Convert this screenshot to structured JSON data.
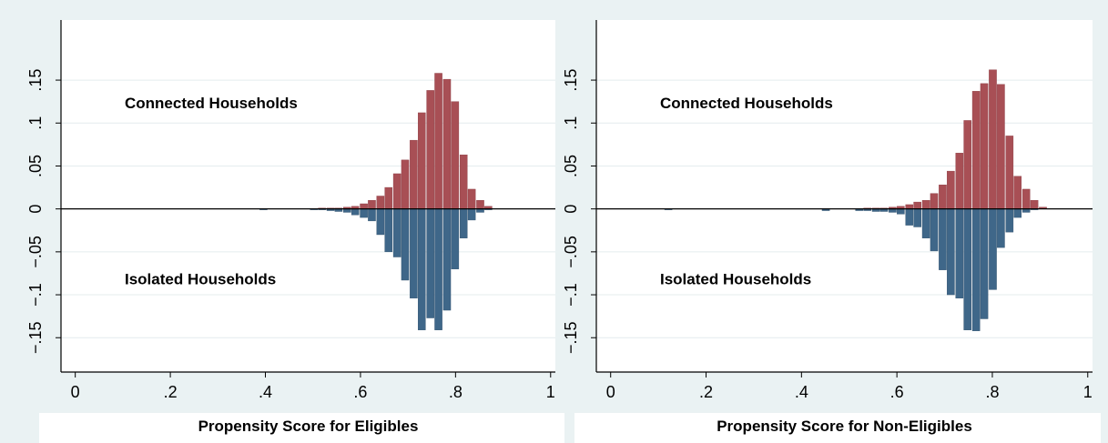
{
  "colors": {
    "background": "#eaf2f3",
    "plot_area": "#ffffff",
    "gridline": "#e4ecee",
    "connected_bar": "#a84f55",
    "connected_bar_edge": "#8a3a40",
    "isolated_bar": "#3f6789",
    "isolated_bar_edge": "#2c4d69",
    "axis": "#000000"
  },
  "chart_data": [
    {
      "type": "bar",
      "subtype": "mirrored-histogram",
      "xlabel": "Propensity Score for Eligibles",
      "ylabel": "",
      "xlim": [
        -0.03,
        1.01
      ],
      "ylim": [
        -0.19,
        0.22
      ],
      "x_ticks": [
        0,
        0.2,
        0.4,
        0.6,
        0.8,
        1
      ],
      "x_tick_labels": [
        "0",
        ".2",
        ".4",
        ".6",
        ".8",
        "1"
      ],
      "y_ticks": [
        -0.15,
        -0.1,
        -0.05,
        0,
        0.05,
        0.1,
        0.15
      ],
      "y_tick_labels": [
        "−.15",
        "−.1",
        "−.05",
        "0",
        ".05",
        ".1",
        ".15"
      ],
      "grid": true,
      "annotations": {
        "upper": "Connected Households",
        "lower": "Isolated Households"
      },
      "bin_width": 0.0175,
      "x": [
        0.396,
        0.502,
        0.519,
        0.537,
        0.554,
        0.572,
        0.589,
        0.607,
        0.624,
        0.642,
        0.659,
        0.677,
        0.694,
        0.712,
        0.729,
        0.747,
        0.764,
        0.782,
        0.799,
        0.817,
        0.834,
        0.852,
        0.869,
        0.887,
        0.904,
        0.922,
        0.939,
        0.957
      ],
      "series": [
        {
          "name": "Connected Households",
          "values": [
            0,
            0,
            0.001,
            0.001,
            0.001,
            0.002,
            0.003,
            0.006,
            0.01,
            0.015,
            0.025,
            0.041,
            0.057,
            0.08,
            0.112,
            0.138,
            0.158,
            0.151,
            0.125,
            0.063,
            0.023,
            0.01,
            0.003,
            0,
            0,
            0,
            0,
            0
          ]
        },
        {
          "name": "Isolated Households",
          "values": [
            -0.001,
            -0.001,
            -0.001,
            -0.002,
            -0.003,
            -0.004,
            -0.007,
            -0.01,
            -0.014,
            -0.03,
            -0.05,
            -0.056,
            -0.083,
            -0.104,
            -0.141,
            -0.127,
            -0.141,
            -0.118,
            -0.07,
            -0.034,
            -0.013,
            -0.004,
            -0.001,
            0,
            0,
            0,
            0,
            0
          ]
        }
      ]
    },
    {
      "type": "bar",
      "subtype": "mirrored-histogram",
      "xlabel": "Propensity Score for Non-Eligibles",
      "ylabel": "",
      "xlim": [
        -0.03,
        1.01
      ],
      "ylim": [
        -0.19,
        0.22
      ],
      "x_ticks": [
        0,
        0.2,
        0.4,
        0.6,
        0.8,
        1
      ],
      "x_tick_labels": [
        "0",
        ".2",
        ".4",
        ".6",
        ".8",
        "1"
      ],
      "y_ticks": [
        -0.15,
        -0.1,
        -0.05,
        0,
        0.05,
        0.1,
        0.15
      ],
      "y_tick_labels": [
        "−.15",
        "−.1",
        "−.05",
        "0",
        ".05",
        ".1",
        ".15"
      ],
      "grid": true,
      "annotations": {
        "upper": "Connected Households",
        "lower": "Isolated Households"
      },
      "bin_width": 0.0175,
      "x": [
        0.121,
        0.451,
        0.521,
        0.538,
        0.556,
        0.573,
        0.591,
        0.608,
        0.626,
        0.643,
        0.661,
        0.678,
        0.696,
        0.713,
        0.731,
        0.748,
        0.766,
        0.783,
        0.801,
        0.818,
        0.836,
        0.853,
        0.871,
        0.888,
        0.906,
        0.923,
        0.941,
        0.958
      ],
      "series": [
        {
          "name": "Connected Households",
          "values": [
            0,
            0,
            0,
            0.001,
            0.001,
            0.001,
            0.002,
            0.003,
            0.005,
            0.008,
            0.01,
            0.018,
            0.028,
            0.044,
            0.065,
            0.103,
            0.137,
            0.146,
            0.162,
            0.145,
            0.085,
            0.038,
            0.023,
            0.01,
            0.002,
            0,
            0,
            0
          ]
        },
        {
          "name": "Isolated Households",
          "values": [
            -0.001,
            -0.002,
            -0.002,
            -0.002,
            -0.003,
            -0.003,
            -0.004,
            -0.006,
            -0.019,
            -0.021,
            -0.034,
            -0.049,
            -0.071,
            -0.1,
            -0.104,
            -0.141,
            -0.142,
            -0.128,
            -0.094,
            -0.045,
            -0.027,
            -0.01,
            -0.004,
            -0.001,
            0,
            0,
            0,
            0
          ]
        }
      ]
    }
  ]
}
